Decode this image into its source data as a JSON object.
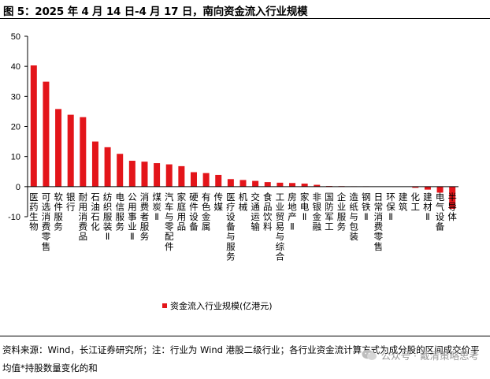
{
  "title": "图 5：2025 年 4 月 14 日-4 月 17 日，南向资金流入行业规模",
  "source": "资料来源：Wind，长江证券研究所；注：行业为 Wind 港股二级行业；各行业资金流计算方式为成分股的区间成交价平均值*持股数量变化的和",
  "watermark": "公众号 · 戴清策略思考",
  "colors": {
    "bar": "#e3151a",
    "axis": "#000000"
  },
  "chart_data": {
    "type": "bar",
    "title": "",
    "xlabel": "",
    "ylabel": "",
    "ylim": [
      -10,
      50
    ],
    "yticks": [
      -10,
      0,
      10,
      20,
      30,
      40,
      50
    ],
    "legend": {
      "position": "bottom-left"
    },
    "grid": false,
    "categories": [
      "医药生物",
      "可选消费零售",
      "软件服务",
      "银行",
      "耐用消费品",
      "石油石化",
      "纺织服装Ⅱ",
      "电信服务",
      "公用事业Ⅱ",
      "消费者服务",
      "煤炭Ⅱ",
      "汽车与零配件",
      "家庭用品",
      "硬件设备",
      "有色金属",
      "传媒",
      "医疗设备与服务",
      "机械",
      "交通运输",
      "食品饮料",
      "工业贸易与综合",
      "房地产Ⅱ",
      "家电Ⅱ",
      "非银金融",
      "国防军工",
      "企业服务",
      "造纸与包装",
      "钢铁Ⅱ",
      "日常消费零售",
      "环保Ⅱ",
      "建筑",
      "化工",
      "建材Ⅱ",
      "电气设备",
      "半导体"
    ],
    "series": [
      {
        "name": "资金流入行业规模(亿港元)",
        "values": [
          40.3,
          34.9,
          25.8,
          23.9,
          23.1,
          15.0,
          13.1,
          10.9,
          8.6,
          8.3,
          7.8,
          7.4,
          6.8,
          4.8,
          4.5,
          3.9,
          2.5,
          2.2,
          1.9,
          1.5,
          1.3,
          1.2,
          1.0,
          0.6,
          0.2,
          0.15,
          0.1,
          0.1,
          0.05,
          0.0,
          0.0,
          -0.4,
          -1.0,
          -2.0,
          -7.4
        ]
      }
    ]
  }
}
